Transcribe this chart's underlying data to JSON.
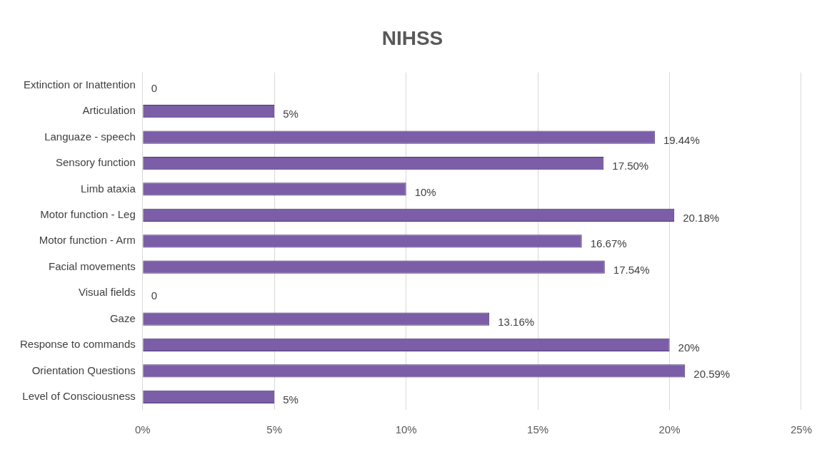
{
  "chart_data": {
    "type": "bar",
    "orientation": "horizontal",
    "title": "NIHSS",
    "categories": [
      "Extinction or Inattention",
      "Articulation",
      "Languaze - speech",
      "Sensory function",
      "Limb ataxia",
      "Motor function - Leg",
      "Motor function - Arm",
      "Facial movements",
      "Visual fields",
      "Gaze",
      "Response to commands",
      "Orientation Questions",
      "Level of Consciousness"
    ],
    "values": [
      0,
      5,
      19.44,
      17.5,
      10,
      20.18,
      16.67,
      17.54,
      0,
      13.16,
      20,
      20.59,
      5
    ],
    "value_labels": [
      "0",
      "5%",
      "19.44%",
      "17.50%",
      "10%",
      "20.18%",
      "16.67%",
      "17.54%",
      "0",
      "13.16%",
      "20%",
      "20.59%",
      "5%"
    ],
    "color": "#7b5ea7",
    "xlim": [
      0,
      25
    ],
    "xticks": [
      {
        "value": 0,
        "label": "0%"
      },
      {
        "value": 5,
        "label": "5%"
      },
      {
        "value": 10,
        "label": "10%"
      },
      {
        "value": 15,
        "label": "15%"
      },
      {
        "value": 20,
        "label": "20%"
      },
      {
        "value": 25,
        "label": "25%"
      }
    ],
    "grid": "x"
  }
}
